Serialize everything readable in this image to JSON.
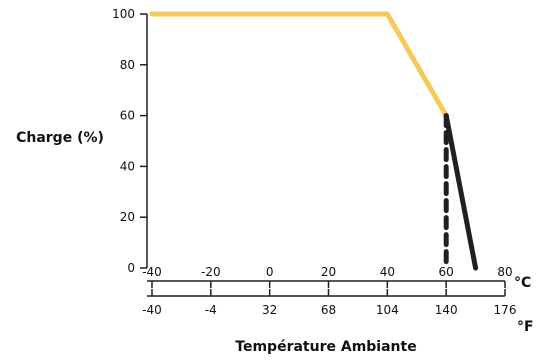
{
  "chart_data": {
    "type": "line",
    "ylabel": "Charge (%)",
    "xlabel": "Température Ambiante",
    "y_ticks": [
      "0",
      "20",
      "40",
      "60",
      "80",
      "100"
    ],
    "ylim": [
      0,
      100
    ],
    "xlim_c": [
      -40,
      80
    ],
    "x_ticks_c": [
      "-40",
      "-20",
      "0",
      "20",
      "40",
      "60",
      "80"
    ],
    "x_ticks_f": [
      "-40",
      "-4",
      "32",
      "68",
      "104",
      "140",
      "176"
    ],
    "unit_c": "°C",
    "unit_f": "°F",
    "grid": false,
    "series": [
      {
        "color": "#F7C95A",
        "style": "solid",
        "x": [
          -40,
          40,
          60
        ],
        "y": [
          100,
          100,
          60
        ]
      },
      {
        "color": "#231F20",
        "style": "solid",
        "x": [
          60,
          70
        ],
        "y": [
          60,
          0
        ]
      },
      {
        "color": "#231F20",
        "style": "dashed",
        "x": [
          60,
          60
        ],
        "y": [
          60,
          0
        ]
      }
    ]
  }
}
